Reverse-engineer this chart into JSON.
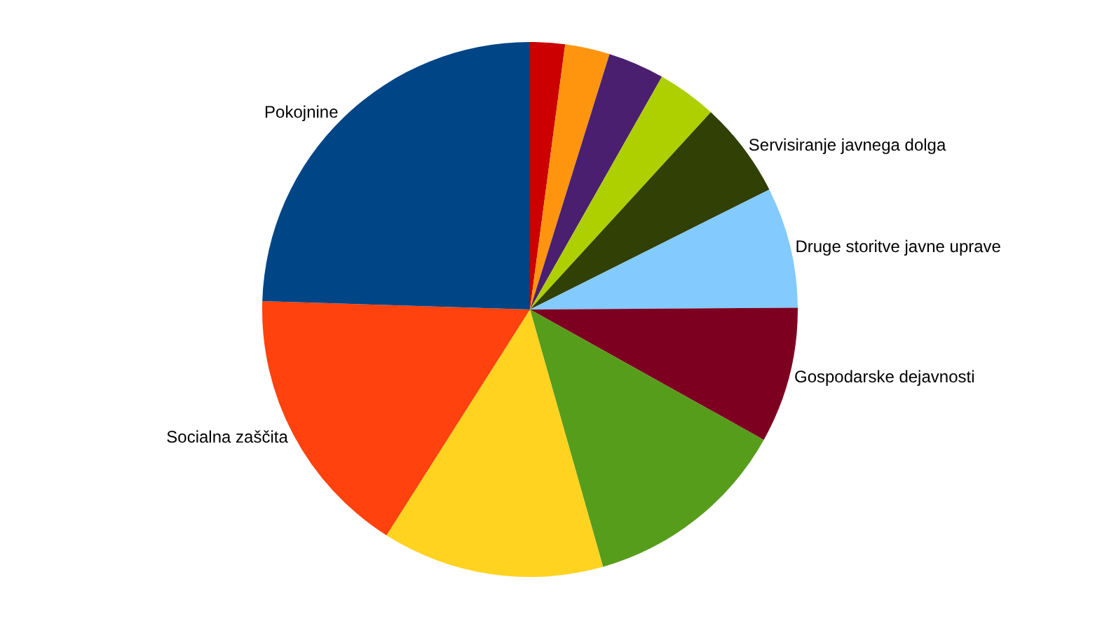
{
  "chart_data": {
    "type": "pie",
    "categories": [
      null,
      null,
      null,
      null,
      "Servisiranje javnega dolga",
      "Druge storitve javne uprave",
      "Gospodarske dejavnosti",
      null,
      null,
      "Socialna zaščita",
      "Pokojnine"
    ],
    "values": [
      2.1,
      2.7,
      3.4,
      3.6,
      5.8,
      7.3,
      8.2,
      12.5,
      13.4,
      16.5,
      24.5
    ],
    "colors": [
      "#cc0000",
      "#ff950e",
      "#4b1f6f",
      "#aecf00",
      "#314004",
      "#83caff",
      "#7e0021",
      "#579d1c",
      "#ffd320",
      "#ff420e",
      "#004586"
    ],
    "legend": false
  }
}
